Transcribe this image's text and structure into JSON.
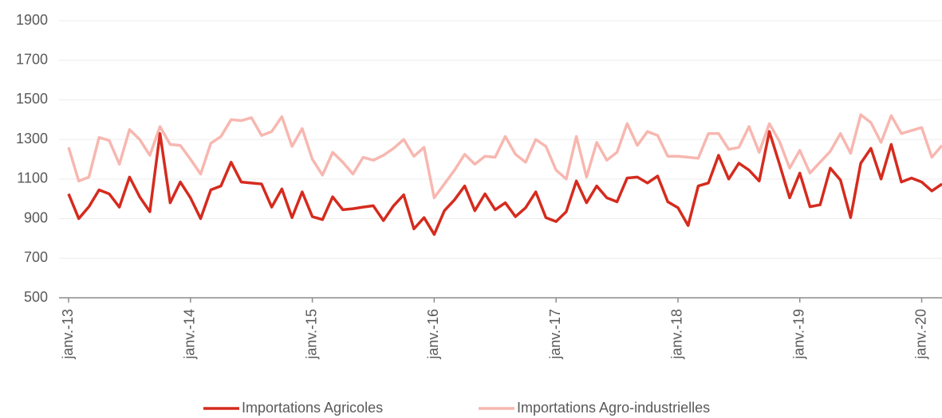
{
  "chart_data": {
    "type": "line",
    "categories": [
      "janv.-13",
      null,
      null,
      null,
      null,
      null,
      null,
      null,
      null,
      null,
      null,
      null,
      "janv.-14",
      null,
      null,
      null,
      null,
      null,
      null,
      null,
      null,
      null,
      null,
      null,
      "janv.-15",
      null,
      null,
      null,
      null,
      null,
      null,
      null,
      null,
      null,
      null,
      null,
      "janv.-16",
      null,
      null,
      null,
      null,
      null,
      null,
      null,
      null,
      null,
      null,
      null,
      "janv.-17",
      null,
      null,
      null,
      null,
      null,
      null,
      null,
      null,
      null,
      null,
      null,
      "janv.-18",
      null,
      null,
      null,
      null,
      null,
      null,
      null,
      null,
      null,
      null,
      null,
      "janv.-19",
      null,
      null,
      null,
      null,
      null,
      null,
      null,
      null,
      null,
      null,
      null,
      "janv.-20",
      null,
      null
    ],
    "series": [
      {
        "name": "Importations Agricoles",
        "color": "#d52b1e",
        "values": [
          1025,
          900,
          960,
          1045,
          1025,
          958,
          1110,
          1010,
          935,
          1330,
          980,
          1085,
          1005,
          900,
          1045,
          1065,
          1185,
          1085,
          1080,
          1075,
          958,
          1050,
          905,
          1035,
          910,
          895,
          1010,
          945,
          950,
          958,
          965,
          890,
          965,
          1020,
          848,
          905,
          820,
          940,
          995,
          1065,
          940,
          1025,
          945,
          980,
          910,
          955,
          1035,
          905,
          885,
          935,
          1090,
          980,
          1065,
          1005,
          985,
          1105,
          1110,
          1080,
          1115,
          985,
          955,
          865,
          1065,
          1080,
          1220,
          1100,
          1180,
          1145,
          1090,
          1340,
          1175,
          1005,
          1130,
          960,
          970,
          1155,
          1095,
          905,
          1180,
          1255,
          1100,
          1275,
          1085,
          1105,
          1085,
          1040,
          1075
        ]
      },
      {
        "name": "Importations Agro-industrielles",
        "color": "#f7b7b0",
        "values": [
          1260,
          1090,
          1110,
          1310,
          1295,
          1175,
          1350,
          1300,
          1220,
          1365,
          1275,
          1270,
          1200,
          1125,
          1280,
          1315,
          1400,
          1395,
          1410,
          1320,
          1340,
          1415,
          1265,
          1355,
          1200,
          1120,
          1235,
          1185,
          1125,
          1210,
          1195,
          1220,
          1255,
          1300,
          1215,
          1260,
          1005,
          1075,
          1145,
          1225,
          1175,
          1215,
          1210,
          1315,
          1225,
          1185,
          1300,
          1265,
          1145,
          1100,
          1315,
          1110,
          1285,
          1195,
          1235,
          1380,
          1270,
          1340,
          1320,
          1215,
          1215,
          1210,
          1205,
          1330,
          1330,
          1250,
          1260,
          1365,
          1235,
          1380,
          1290,
          1155,
          1245,
          1130,
          1185,
          1240,
          1330,
          1230,
          1425,
          1385,
          1285,
          1420,
          1330,
          1345,
          1360,
          1210,
          1270
        ]
      }
    ],
    "ylim": [
      500,
      1900
    ],
    "yticks": [
      500,
      700,
      900,
      1100,
      1300,
      1500,
      1700,
      1900
    ],
    "grid": true,
    "legend": "bottom"
  }
}
